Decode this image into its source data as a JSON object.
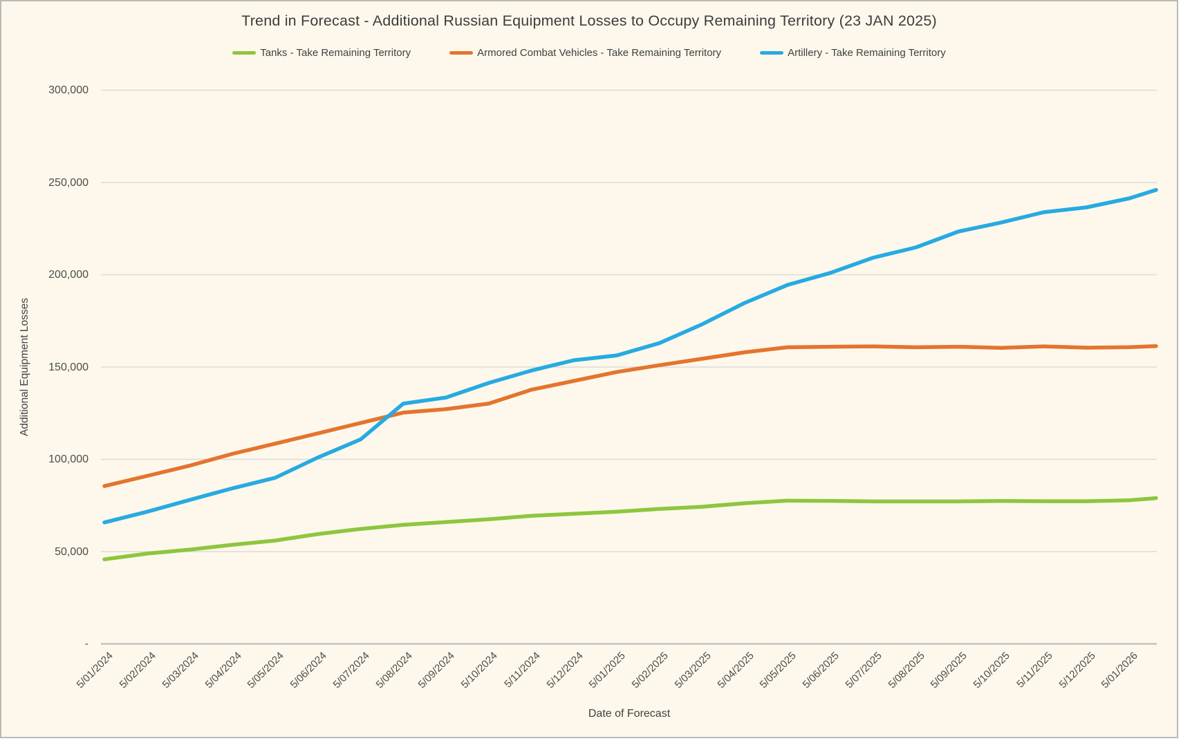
{
  "window": {
    "background": "#FDF8EB",
    "border_color": "#B9B9B9",
    "gridline_color": "#DBDBDB",
    "axis_line_color": "#C2C2C2",
    "text_color": "#3C3C3C",
    "tick_text_color": "#4C4C4C"
  },
  "chart_data": {
    "type": "line",
    "title": "Trend in Forecast - Additional Russian Equipment Losses to Occupy Remaining Territory (23 JAN 2025)",
    "xlabel": "Date of Forecast",
    "ylabel": "Additional Equipment Losses",
    "ylim": [
      0,
      300000
    ],
    "ytick_step": 50000,
    "ytick_labels_top_to_bottom": [
      "300,000",
      "250,000",
      "200,000",
      "150,000",
      "100,000",
      "50,000",
      "-"
    ],
    "grid": true,
    "legend_position": "top",
    "categories": [
      "5/01/2024",
      "5/02/2024",
      "5/03/2024",
      "5/04/2024",
      "5/05/2024",
      "5/06/2024",
      "5/07/2024",
      "5/08/2024",
      "5/09/2024",
      "5/10/2024",
      "5/11/2024",
      "5/12/2024",
      "5/01/2025",
      "5/02/2025",
      "5/03/2025",
      "5/04/2025",
      "5/05/2025",
      "5/06/2025",
      "5/07/2025",
      "5/08/2025",
      "5/09/2025",
      "5/10/2025",
      "5/11/2025",
      "5/12/2025",
      "5/01/2026"
    ],
    "series": [
      {
        "name": "Tanks - Take Remaining Territory",
        "color": "#8DC63F",
        "values": [
          45800,
          48900,
          51100,
          53700,
          56000,
          59500,
          62300,
          64500,
          66000,
          67500,
          69400,
          70500,
          71600,
          73100,
          74300,
          76200,
          77600,
          77500,
          77200,
          77200,
          77200,
          77400,
          77300,
          77300,
          77800
        ],
        "end_value": 79000
      },
      {
        "name": "Armored Combat Vehicles - Take Remaining Territory",
        "color": "#E4742E",
        "values": [
          85500,
          91000,
          96600,
          103000,
          108500,
          114100,
          119700,
          125300,
          127200,
          130200,
          137700,
          142500,
          147300,
          151000,
          154500,
          158000,
          160700,
          161000,
          161200,
          160700,
          161000,
          160400,
          161200,
          160500,
          160800
        ],
        "end_value": 161300
      },
      {
        "name": "Artillery - Take Remaining Territory",
        "color": "#27AAE2",
        "values": [
          65800,
          71600,
          78000,
          84300,
          90000,
          101000,
          110800,
          130200,
          133500,
          141400,
          148100,
          153700,
          156300,
          163000,
          173200,
          184800,
          194500,
          201000,
          209200,
          214800,
          223400,
          228300,
          233900,
          236500,
          241400
        ],
        "end_value": 246000
      }
    ]
  }
}
